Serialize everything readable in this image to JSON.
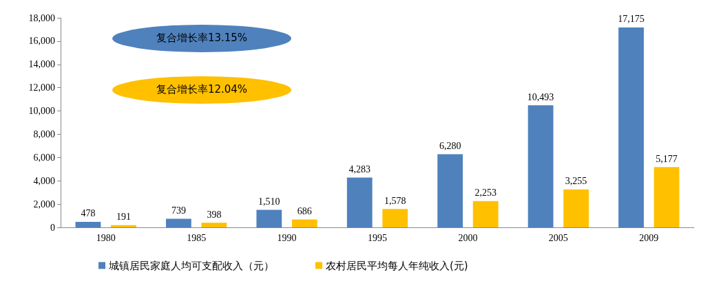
{
  "chart_data": {
    "type": "bar",
    "categories": [
      "1980",
      "1985",
      "1990",
      "1995",
      "2000",
      "2005",
      "2009"
    ],
    "series": [
      {
        "name": "城镇居民家庭人均可支配收入（元）",
        "color": "#4f81bd",
        "values": [
          478,
          739,
          1510,
          4283,
          6280,
          10493,
          17175
        ],
        "value_labels": [
          "478",
          "739",
          "1,510",
          "4,283",
          "6,280",
          "10,493",
          "17,175"
        ]
      },
      {
        "name": "农村居民平均每人年纯收入(元)",
        "color": "#ffc000",
        "values": [
          191,
          398,
          686,
          1578,
          2253,
          3255,
          5177
        ],
        "value_labels": [
          "191",
          "398",
          "686",
          "1,578",
          "2,253",
          "3,255",
          "5,177"
        ]
      }
    ],
    "ylim": [
      0,
      18000
    ],
    "yticks": [
      {
        "value": 0,
        "label": "0"
      },
      {
        "value": 2000,
        "label": "2,000"
      },
      {
        "value": 4000,
        "label": "4,000"
      },
      {
        "value": 6000,
        "label": "6,000"
      },
      {
        "value": 8000,
        "label": "8,000"
      },
      {
        "value": 10000,
        "label": "10,000"
      },
      {
        "value": 12000,
        "label": "12,000"
      },
      {
        "value": 14000,
        "label": "14,000"
      },
      {
        "value": 16000,
        "label": "16,000"
      },
      {
        "value": 18000,
        "label": "18,000"
      }
    ],
    "annotations": [
      "复合增长率13.15%",
      "复合增长率12.04%"
    ],
    "grid": false,
    "legend": "bottom left"
  }
}
